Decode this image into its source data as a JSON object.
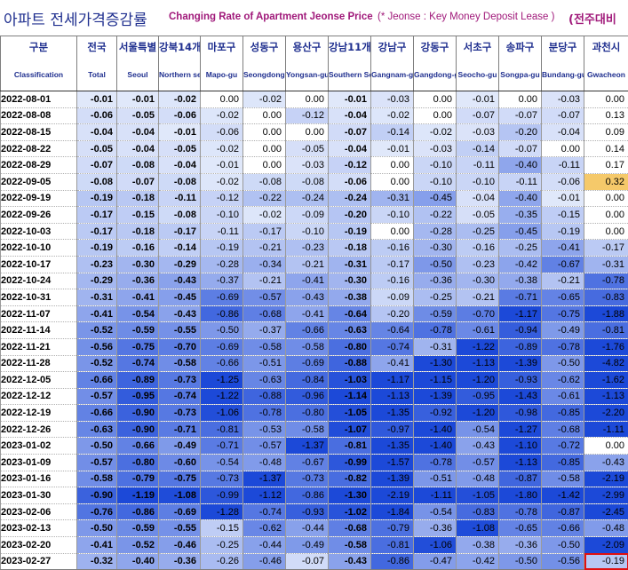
{
  "title": {
    "korean": "아파트 전세가격증감률",
    "english": "Changing Rate of Apartment Jeonse Price",
    "note": "(* Jeonse : Key Money Deposit Lease )",
    "right": "(전주대비"
  },
  "columns": [
    {
      "kor": "구분",
      "eng": "Classification"
    },
    {
      "kor": "전국",
      "eng": "Total"
    },
    {
      "kor": "서울특별",
      "eng": "Seoul"
    },
    {
      "kor": "강북14개",
      "eng": "Northern seoul"
    },
    {
      "kor": "마포구",
      "eng": "Mapo-gu"
    },
    {
      "kor": "성동구",
      "eng": "Seongdong-gu"
    },
    {
      "kor": "용산구",
      "eng": "Yongsan-gu"
    },
    {
      "kor": "강남11개",
      "eng": "Southern Seoul"
    },
    {
      "kor": "강남구",
      "eng": "Gangnam-gu"
    },
    {
      "kor": "강동구",
      "eng": "Gangdong-gu"
    },
    {
      "kor": "서초구",
      "eng": "Seocho-gu"
    },
    {
      "kor": "송파구",
      "eng": "Songpa-gu"
    },
    {
      "kor": "분당구",
      "eng": "Bundang-gu"
    },
    {
      "kor": "과천시",
      "eng": "Gwacheon"
    }
  ],
  "rows": [
    {
      "date": "2022-08-01",
      "values": [
        "-0.01",
        "-0.01",
        "-0.02",
        "0.00",
        "-0.02",
        "0.00",
        "-0.01",
        "-0.03",
        "0.00",
        "-0.01",
        "0.00",
        "-0.03",
        "0.00"
      ]
    },
    {
      "date": "2022-08-08",
      "values": [
        "-0.06",
        "-0.05",
        "-0.06",
        "-0.02",
        "0.00",
        "-0.12",
        "-0.04",
        "-0.02",
        "0.00",
        "-0.07",
        "-0.07",
        "-0.07",
        "0.13"
      ]
    },
    {
      "date": "2022-08-15",
      "values": [
        "-0.04",
        "-0.04",
        "-0.01",
        "-0.06",
        "0.00",
        "0.00",
        "-0.07",
        "-0.14",
        "-0.02",
        "-0.03",
        "-0.20",
        "-0.04",
        "0.09"
      ]
    },
    {
      "date": "2022-08-22",
      "values": [
        "-0.05",
        "-0.04",
        "-0.05",
        "-0.02",
        "0.00",
        "-0.05",
        "-0.04",
        "-0.01",
        "-0.03",
        "-0.14",
        "-0.07",
        "0.00",
        "0.14"
      ]
    },
    {
      "date": "2022-08-29",
      "values": [
        "-0.07",
        "-0.08",
        "-0.04",
        "-0.01",
        "0.00",
        "-0.03",
        "-0.12",
        "0.00",
        "-0.10",
        "-0.11",
        "-0.40",
        "-0.11",
        "0.17"
      ]
    },
    {
      "date": "2022-09-05",
      "values": [
        "-0.08",
        "-0.07",
        "-0.08",
        "-0.02",
        "-0.08",
        "-0.08",
        "-0.06",
        "0.00",
        "-0.10",
        "-0.10",
        "-0.11",
        "-0.06",
        "0.32"
      ]
    },
    {
      "date": "2022-09-19",
      "values": [
        "-0.19",
        "-0.18",
        "-0.11",
        "-0.12",
        "-0.22",
        "-0.24",
        "-0.24",
        "-0.31",
        "-0.45",
        "-0.04",
        "-0.40",
        "-0.01",
        "0.00"
      ]
    },
    {
      "date": "2022-09-26",
      "values": [
        "-0.17",
        "-0.15",
        "-0.08",
        "-0.10",
        "-0.02",
        "-0.09",
        "-0.20",
        "-0.10",
        "-0.22",
        "-0.05",
        "-0.35",
        "-0.15",
        "0.00"
      ]
    },
    {
      "date": "2022-10-03",
      "values": [
        "-0.17",
        "-0.18",
        "-0.17",
        "-0.11",
        "-0.17",
        "-0.10",
        "-0.19",
        "0.00",
        "-0.28",
        "-0.25",
        "-0.45",
        "-0.19",
        "0.00"
      ]
    },
    {
      "date": "2022-10-10",
      "values": [
        "-0.19",
        "-0.16",
        "-0.14",
        "-0.19",
        "-0.21",
        "-0.23",
        "-0.18",
        "-0.16",
        "-0.30",
        "-0.16",
        "-0.25",
        "-0.41",
        "-0.17"
      ]
    },
    {
      "date": "2022-10-17",
      "values": [
        "-0.23",
        "-0.30",
        "-0.29",
        "-0.28",
        "-0.34",
        "-0.21",
        "-0.31",
        "-0.17",
        "-0.50",
        "-0.23",
        "-0.42",
        "-0.67",
        "-0.31"
      ]
    },
    {
      "date": "2022-10-24",
      "values": [
        "-0.29",
        "-0.36",
        "-0.43",
        "-0.37",
        "-0.21",
        "-0.41",
        "-0.30",
        "-0.16",
        "-0.36",
        "-0.30",
        "-0.38",
        "-0.21",
        "-0.78"
      ]
    },
    {
      "date": "2022-10-31",
      "values": [
        "-0.31",
        "-0.41",
        "-0.45",
        "-0.69",
        "-0.57",
        "-0.43",
        "-0.38",
        "-0.09",
        "-0.25",
        "-0.21",
        "-0.71",
        "-0.65",
        "-0.83"
      ]
    },
    {
      "date": "2022-11-07",
      "values": [
        "-0.41",
        "-0.54",
        "-0.43",
        "-0.86",
        "-0.68",
        "-0.41",
        "-0.64",
        "-0.20",
        "-0.59",
        "-0.70",
        "-1.17",
        "-0.75",
        "-1.88"
      ]
    },
    {
      "date": "2022-11-14",
      "values": [
        "-0.52",
        "-0.59",
        "-0.55",
        "-0.50",
        "-0.37",
        "-0.66",
        "-0.63",
        "-0.64",
        "-0.78",
        "-0.61",
        "-0.94",
        "-0.49",
        "-0.81"
      ]
    },
    {
      "date": "2022-11-21",
      "values": [
        "-0.56",
        "-0.75",
        "-0.70",
        "-0.69",
        "-0.58",
        "-0.58",
        "-0.80",
        "-0.74",
        "-0.31",
        "-1.22",
        "-0.89",
        "-0.78",
        "-1.76"
      ]
    },
    {
      "date": "2022-11-28",
      "values": [
        "-0.52",
        "-0.74",
        "-0.58",
        "-0.66",
        "-0.51",
        "-0.69",
        "-0.88",
        "-0.41",
        "-1.30",
        "-1.13",
        "-1.39",
        "-0.50",
        "-4.82"
      ]
    },
    {
      "date": "2022-12-05",
      "values": [
        "-0.66",
        "-0.89",
        "-0.73",
        "-1.25",
        "-0.63",
        "-0.84",
        "-1.03",
        "-1.17",
        "-1.15",
        "-1.20",
        "-0.93",
        "-0.62",
        "-1.62"
      ]
    },
    {
      "date": "2022-12-12",
      "values": [
        "-0.57",
        "-0.95",
        "-0.74",
        "-1.22",
        "-0.88",
        "-0.96",
        "-1.14",
        "-1.13",
        "-1.39",
        "-0.95",
        "-1.43",
        "-0.61",
        "-1.13"
      ]
    },
    {
      "date": "2022-12-19",
      "values": [
        "-0.66",
        "-0.90",
        "-0.73",
        "-1.06",
        "-0.78",
        "-0.80",
        "-1.05",
        "-1.35",
        "-0.92",
        "-1.20",
        "-0.98",
        "-0.85",
        "-2.20"
      ]
    },
    {
      "date": "2022-12-26",
      "values": [
        "-0.63",
        "-0.90",
        "-0.71",
        "-0.81",
        "-0.53",
        "-0.58",
        "-1.07",
        "-0.97",
        "-1.40",
        "-0.54",
        "-1.27",
        "-0.68",
        "-1.11"
      ]
    },
    {
      "date": "2023-01-02",
      "values": [
        "-0.50",
        "-0.66",
        "-0.49",
        "-0.71",
        "-0.57",
        "-1.37",
        "-0.81",
        "-1.35",
        "-1.40",
        "-0.43",
        "-1.10",
        "-0.72",
        "0.00"
      ]
    },
    {
      "date": "2023-01-09",
      "values": [
        "-0.57",
        "-0.80",
        "-0.60",
        "-0.54",
        "-0.48",
        "-0.67",
        "-0.99",
        "-1.57",
        "-0.78",
        "-0.57",
        "-1.13",
        "-0.85",
        "-0.43"
      ]
    },
    {
      "date": "2023-01-16",
      "values": [
        "-0.58",
        "-0.79",
        "-0.75",
        "-0.73",
        "-1.37",
        "-0.73",
        "-0.82",
        "-1.39",
        "-0.51",
        "-0.48",
        "-0.87",
        "-0.58",
        "-2.19"
      ]
    },
    {
      "date": "2023-01-30",
      "values": [
        "-0.90",
        "-1.19",
        "-1.08",
        "-0.99",
        "-1.12",
        "-0.86",
        "-1.30",
        "-2.19",
        "-1.11",
        "-1.05",
        "-1.80",
        "-1.42",
        "-2.99"
      ]
    },
    {
      "date": "2023-02-06",
      "values": [
        "-0.76",
        "-0.86",
        "-0.69",
        "-1.28",
        "-0.74",
        "-0.93",
        "-1.02",
        "-1.84",
        "-0.54",
        "-0.83",
        "-0.78",
        "-0.87",
        "-2.45"
      ]
    },
    {
      "date": "2023-02-13",
      "values": [
        "-0.50",
        "-0.59",
        "-0.55",
        "-0.15",
        "-0.62",
        "-0.44",
        "-0.68",
        "-0.79",
        "-0.36",
        "-1.08",
        "-0.65",
        "-0.66",
        "-0.48"
      ]
    },
    {
      "date": "2023-02-20",
      "values": [
        "-0.41",
        "-0.52",
        "-0.46",
        "-0.25",
        "-0.44",
        "-0.49",
        "-0.58",
        "-0.81",
        "-1.06",
        "-0.38",
        "-0.36",
        "-0.50",
        "-2.09"
      ]
    },
    {
      "date": "2023-02-27",
      "values": [
        "-0.32",
        "-0.40",
        "-0.36",
        "-0.26",
        "-0.46",
        "-0.07",
        "-0.43",
        "-0.86",
        "-0.47",
        "-0.42",
        "-0.50",
        "-0.56",
        "-0.19"
      ]
    }
  ],
  "colors": {
    "title_kor": "#1f2f8f",
    "title_eng": "#a0197a",
    "positive_fill": "#f5c96a",
    "highlight_outline": "#e01010",
    "scale_light": "#e4ebfb",
    "scale_dark": "#1c49d8"
  },
  "highlight_cell": {
    "row": "2023-02-27",
    "column": "과천시"
  }
}
